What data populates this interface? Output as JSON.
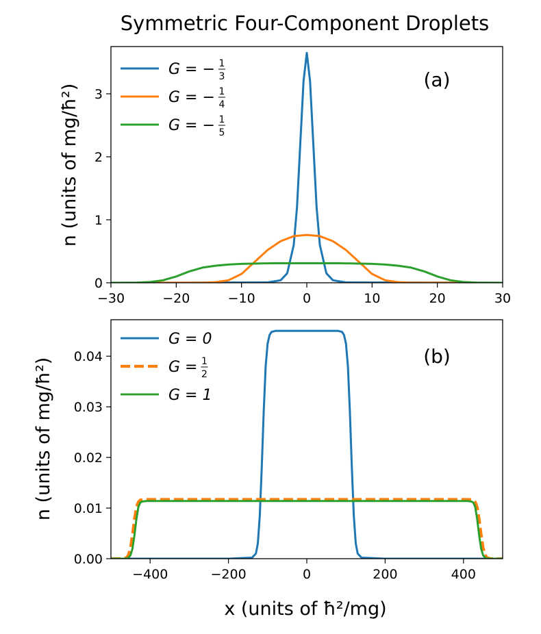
{
  "figure_title": "Symmetric Four-Component Droplets",
  "colors": {
    "blue": "#1f77b4",
    "orange": "#ff7f0e",
    "green": "#2ca02c"
  },
  "chart_data": [
    {
      "type": "line",
      "panel_label": "(a)",
      "title": "",
      "xlabel": "",
      "ylabel": "n (units of mg/ħ²)",
      "xlim": [
        -30,
        30
      ],
      "ylim": [
        0,
        3.75
      ],
      "xticks": [
        -30,
        -20,
        -10,
        0,
        10,
        20,
        30
      ],
      "xtick_labels": [
        "−30",
        "−20",
        "−10",
        "0",
        "10",
        "20",
        "30"
      ],
      "yticks": [
        0,
        1,
        2,
        3
      ],
      "ytick_labels": [
        "0",
        "1",
        "2",
        "3"
      ],
      "legend_position": "top-left",
      "series": [
        {
          "name": "G = −1/3",
          "legend_label": "G = −",
          "frac_num": "1",
          "frac_den": "3",
          "color": "#1f77b4",
          "style": "solid",
          "x": [
            -30,
            -6,
            -4,
            -3,
            -2,
            -1.5,
            -1,
            -0.5,
            0,
            0.5,
            1,
            1.5,
            2,
            3,
            4,
            6,
            30
          ],
          "y": [
            0,
            0.005,
            0.04,
            0.15,
            0.6,
            1.2,
            2.2,
            3.2,
            3.65,
            3.2,
            2.2,
            1.2,
            0.6,
            0.15,
            0.04,
            0.005,
            0
          ]
        },
        {
          "name": "G = −1/4",
          "legend_label": "G = −",
          "frac_num": "1",
          "frac_den": "4",
          "color": "#ff7f0e",
          "style": "solid",
          "x": [
            -30,
            -16,
            -14,
            -12,
            -10,
            -8,
            -6,
            -4,
            -2,
            0,
            2,
            4,
            6,
            8,
            10,
            12,
            14,
            16,
            30
          ],
          "y": [
            0,
            0.002,
            0.01,
            0.04,
            0.14,
            0.33,
            0.52,
            0.66,
            0.74,
            0.76,
            0.74,
            0.66,
            0.52,
            0.33,
            0.14,
            0.04,
            0.01,
            0.002,
            0
          ]
        },
        {
          "name": "G = −1/5",
          "legend_label": "G = −",
          "frac_num": "1",
          "frac_den": "5",
          "color": "#2ca02c",
          "style": "solid",
          "x": [
            -30,
            -26,
            -24,
            -22,
            -20,
            -18,
            -16,
            -14,
            -12,
            -10,
            -8,
            -5,
            0,
            5,
            8,
            10,
            12,
            14,
            16,
            18,
            20,
            22,
            24,
            26,
            30
          ],
          "y": [
            0,
            0.003,
            0.012,
            0.04,
            0.1,
            0.18,
            0.24,
            0.27,
            0.29,
            0.3,
            0.305,
            0.31,
            0.31,
            0.31,
            0.305,
            0.3,
            0.29,
            0.27,
            0.24,
            0.18,
            0.1,
            0.04,
            0.012,
            0.003,
            0
          ]
        }
      ]
    },
    {
      "type": "line",
      "panel_label": "(b)",
      "title": "",
      "xlabel": "x (units of ħ²/mg)",
      "ylabel": "n (units of mg/ħ²)",
      "xlim": [
        -500,
        500
      ],
      "ylim": [
        0,
        0.0472
      ],
      "xticks": [
        -400,
        -200,
        0,
        200,
        400
      ],
      "xtick_labels": [
        "−400",
        "−200",
        "0",
        "200",
        "400"
      ],
      "yticks": [
        0,
        0.01,
        0.02,
        0.03,
        0.04
      ],
      "ytick_labels": [
        "0.00",
        "0.01",
        "0.02",
        "0.03",
        "0.04"
      ],
      "legend_position": "top-left",
      "series": [
        {
          "name": "G = 0",
          "legend_label": "G = 0",
          "color": "#1f77b4",
          "style": "solid",
          "x": [
            -500,
            -200,
            -140,
            -130,
            -125,
            -120,
            -115,
            -110,
            -105,
            -100,
            -95,
            -90,
            -80,
            80,
            90,
            95,
            100,
            105,
            110,
            115,
            120,
            125,
            130,
            140,
            200,
            500
          ],
          "y": [
            0,
            0,
            0.0002,
            0.001,
            0.003,
            0.0085,
            0.018,
            0.029,
            0.038,
            0.0425,
            0.0442,
            0.0448,
            0.045,
            0.045,
            0.0448,
            0.0442,
            0.0425,
            0.038,
            0.029,
            0.018,
            0.0085,
            0.003,
            0.001,
            0.0002,
            0,
            0
          ]
        },
        {
          "name": "G = 1/2",
          "legend_label": "G = ",
          "frac_num": "1",
          "frac_den": "2",
          "color": "#ff7f0e",
          "style": "dashed",
          "x": [
            -500,
            -470,
            -460,
            -455,
            -450,
            -445,
            -440,
            -435,
            -430,
            -425,
            -415,
            415,
            425,
            430,
            435,
            440,
            445,
            450,
            455,
            460,
            470,
            500
          ],
          "y": [
            0,
            0,
            0.0002,
            0.0008,
            0.0022,
            0.0048,
            0.0078,
            0.0102,
            0.0112,
            0.0116,
            0.0117,
            0.0117,
            0.0116,
            0.0112,
            0.0102,
            0.0078,
            0.0048,
            0.0022,
            0.0008,
            0.0002,
            0,
            0
          ]
        },
        {
          "name": "G = 1",
          "legend_label": "G = 1",
          "color": "#2ca02c",
          "style": "solid",
          "x": [
            -500,
            -465,
            -455,
            -450,
            -445,
            -440,
            -435,
            -430,
            -425,
            -420,
            -410,
            410,
            420,
            425,
            430,
            435,
            440,
            445,
            450,
            455,
            465,
            500
          ],
          "y": [
            0,
            0,
            0.0002,
            0.0007,
            0.002,
            0.0046,
            0.0078,
            0.0102,
            0.0111,
            0.0113,
            0.0114,
            0.0114,
            0.0113,
            0.0111,
            0.0102,
            0.0078,
            0.0046,
            0.002,
            0.0007,
            0.0002,
            0,
            0
          ]
        }
      ]
    }
  ]
}
